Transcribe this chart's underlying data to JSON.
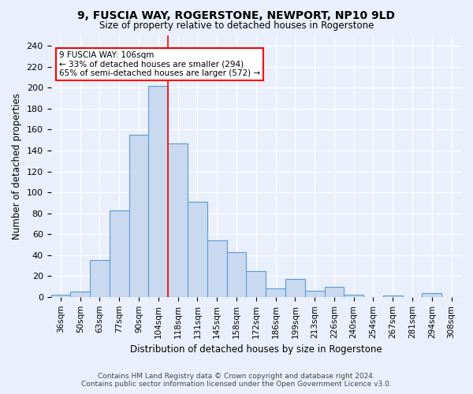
{
  "title": "9, FUSCIA WAY, ROGERSTONE, NEWPORT, NP10 9LD",
  "subtitle": "Size of property relative to detached houses in Rogerstone",
  "xlabel": "Distribution of detached houses by size in Rogerstone",
  "ylabel": "Number of detached properties",
  "footnote1": "Contains HM Land Registry data © Crown copyright and database right 2024.",
  "footnote2": "Contains public sector information licensed under the Open Government Licence v3.0.",
  "annotation_line1": "9 FUSCIA WAY: 106sqm",
  "annotation_line2": "← 33% of detached houses are smaller (294)",
  "annotation_line3": "65% of semi-detached houses are larger (572) →",
  "bar_labels": [
    "36sqm",
    "50sqm",
    "63sqm",
    "77sqm",
    "90sqm",
    "104sqm",
    "118sqm",
    "131sqm",
    "145sqm",
    "158sqm",
    "172sqm",
    "186sqm",
    "199sqm",
    "213sqm",
    "226sqm",
    "240sqm",
    "254sqm",
    "267sqm",
    "281sqm",
    "294sqm",
    "308sqm"
  ],
  "bar_values": [
    2,
    5,
    35,
    83,
    155,
    202,
    147,
    91,
    54,
    43,
    25,
    8,
    17,
    6,
    10,
    2,
    0,
    1,
    0,
    4,
    0
  ],
  "bar_color": "#c9d9f0",
  "bar_edge_color": "#5b9bd5",
  "vline_x": 5.5,
  "vline_color": "red",
  "annotation_box_color": "#ffffff",
  "annotation_box_edge": "red",
  "bg_color": "#eaf0fb",
  "grid_color": "#ffffff",
  "ylim": [
    0,
    250
  ],
  "yticks": [
    0,
    20,
    40,
    60,
    80,
    100,
    120,
    140,
    160,
    180,
    200,
    220,
    240
  ]
}
